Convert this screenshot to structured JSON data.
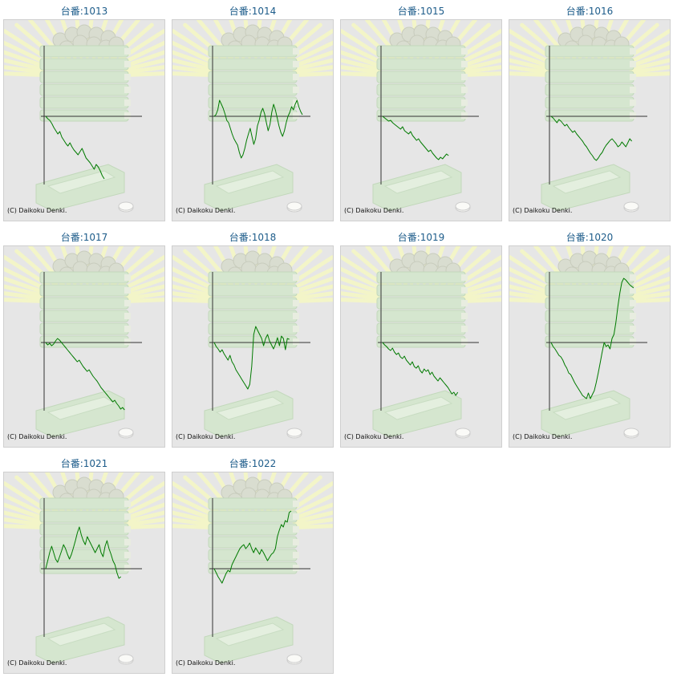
{
  "copyright": "(C) Daikoku Denki.",
  "colors": {
    "title": "#1d5c8a",
    "line": "#007a00",
    "axis": "#333333",
    "background": "#e6e6e6"
  },
  "chart_data": [
    {
      "type": "line",
      "title": "台番:1013",
      "y": [
        0,
        -3,
        -5,
        -9,
        -14,
        -18,
        -22,
        -19,
        -26,
        -30,
        -34,
        -37,
        -33,
        -38,
        -42,
        -45,
        -48,
        -44,
        -40,
        -46,
        -52,
        -55,
        -58,
        -62,
        -66,
        -60,
        -63,
        -68,
        -74,
        -78
      ]
    },
    {
      "type": "line",
      "title": "台番:1014",
      "y": [
        0,
        2,
        8,
        20,
        15,
        10,
        3,
        -5,
        -8,
        -15,
        -22,
        -28,
        -32,
        -36,
        -45,
        -52,
        -48,
        -40,
        -30,
        -22,
        -15,
        -25,
        -35,
        -28,
        -12,
        -5,
        5,
        10,
        3,
        -8,
        -18,
        -10,
        5,
        15,
        8,
        -2,
        -12,
        -20,
        -25,
        -18,
        -8,
        0,
        5,
        12,
        8,
        15,
        20,
        12,
        6,
        2
      ]
    },
    {
      "type": "line",
      "title": "台番:1015",
      "y": [
        0,
        -2,
        -4,
        -6,
        -5,
        -8,
        -10,
        -12,
        -14,
        -16,
        -13,
        -18,
        -20,
        -22,
        -19,
        -24,
        -27,
        -30,
        -28,
        -32,
        -35,
        -38,
        -41,
        -44,
        -42,
        -46,
        -49,
        -52,
        -54,
        -51,
        -53,
        -50,
        -47,
        -49
      ]
    },
    {
      "type": "line",
      "title": "台番:1016",
      "y": [
        0,
        -2,
        -5,
        -8,
        -4,
        -6,
        -9,
        -12,
        -10,
        -14,
        -17,
        -20,
        -18,
        -22,
        -25,
        -28,
        -31,
        -35,
        -38,
        -42,
        -46,
        -49,
        -53,
        -55,
        -52,
        -48,
        -45,
        -40,
        -36,
        -33,
        -30,
        -28,
        -31,
        -34,
        -38,
        -36,
        -32,
        -35,
        -38,
        -33,
        -28,
        -31
      ]
    },
    {
      "type": "line",
      "title": "台番:1017",
      "y": [
        0,
        -3,
        -1,
        -4,
        -2,
        2,
        5,
        3,
        0,
        -3,
        -6,
        -9,
        -12,
        -15,
        -18,
        -21,
        -24,
        -22,
        -26,
        -30,
        -33,
        -36,
        -34,
        -38,
        -42,
        -45,
        -48,
        -52,
        -56,
        -59,
        -62,
        -65,
        -68,
        -71,
        -74,
        -72,
        -76,
        -79,
        -83,
        -81,
        -84
      ]
    },
    {
      "type": "line",
      "title": "台番:1018",
      "y": [
        0,
        -5,
        -8,
        -12,
        -9,
        -14,
        -18,
        -22,
        -16,
        -24,
        -28,
        -34,
        -38,
        -42,
        -46,
        -50,
        -54,
        -58,
        -52,
        -30,
        10,
        20,
        15,
        10,
        5,
        -4,
        5,
        10,
        2,
        -3,
        -8,
        -2,
        6,
        -4,
        8,
        5,
        -9,
        5,
        4
      ]
    },
    {
      "type": "line",
      "title": "台番:1019",
      "y": [
        0,
        -3,
        -5,
        -8,
        -10,
        -7,
        -12,
        -15,
        -13,
        -18,
        -20,
        -17,
        -22,
        -25,
        -28,
        -24,
        -30,
        -32,
        -29,
        -35,
        -38,
        -33,
        -36,
        -34,
        -40,
        -37,
        -42,
        -45,
        -48,
        -44,
        -47,
        -50,
        -53,
        -56,
        -60,
        -64,
        -62,
        -66,
        -62
      ]
    },
    {
      "type": "line",
      "title": "台番:1020",
      "y": [
        0,
        -5,
        -8,
        -12,
        -16,
        -18,
        -22,
        -28,
        -32,
        -38,
        -40,
        -45,
        -50,
        -54,
        -58,
        -62,
        -66,
        -68,
        -70,
        -63,
        -70,
        -65,
        -60,
        -50,
        -38,
        -25,
        -12,
        0,
        -5,
        -3,
        -8,
        5,
        10,
        25,
        45,
        62,
        75,
        80,
        78,
        75,
        72,
        70,
        68
      ]
    },
    {
      "type": "line",
      "title": "台番:1021",
      "y": [
        0,
        10,
        20,
        28,
        20,
        12,
        8,
        15,
        22,
        30,
        25,
        18,
        12,
        18,
        26,
        35,
        45,
        52,
        42,
        35,
        30,
        40,
        35,
        30,
        25,
        20,
        25,
        30,
        20,
        15,
        28,
        35,
        25,
        18,
        10,
        5,
        -5,
        -12,
        -10
      ]
    },
    {
      "type": "line",
      "title": "台番:1022",
      "y": [
        0,
        -5,
        -10,
        -14,
        -18,
        -12,
        -6,
        -2,
        -4,
        5,
        10,
        15,
        20,
        25,
        28,
        30,
        25,
        28,
        32,
        25,
        20,
        26,
        22,
        18,
        24,
        20,
        15,
        10,
        14,
        18,
        20,
        25,
        40,
        48,
        55,
        52,
        60,
        58,
        70,
        72
      ]
    }
  ]
}
